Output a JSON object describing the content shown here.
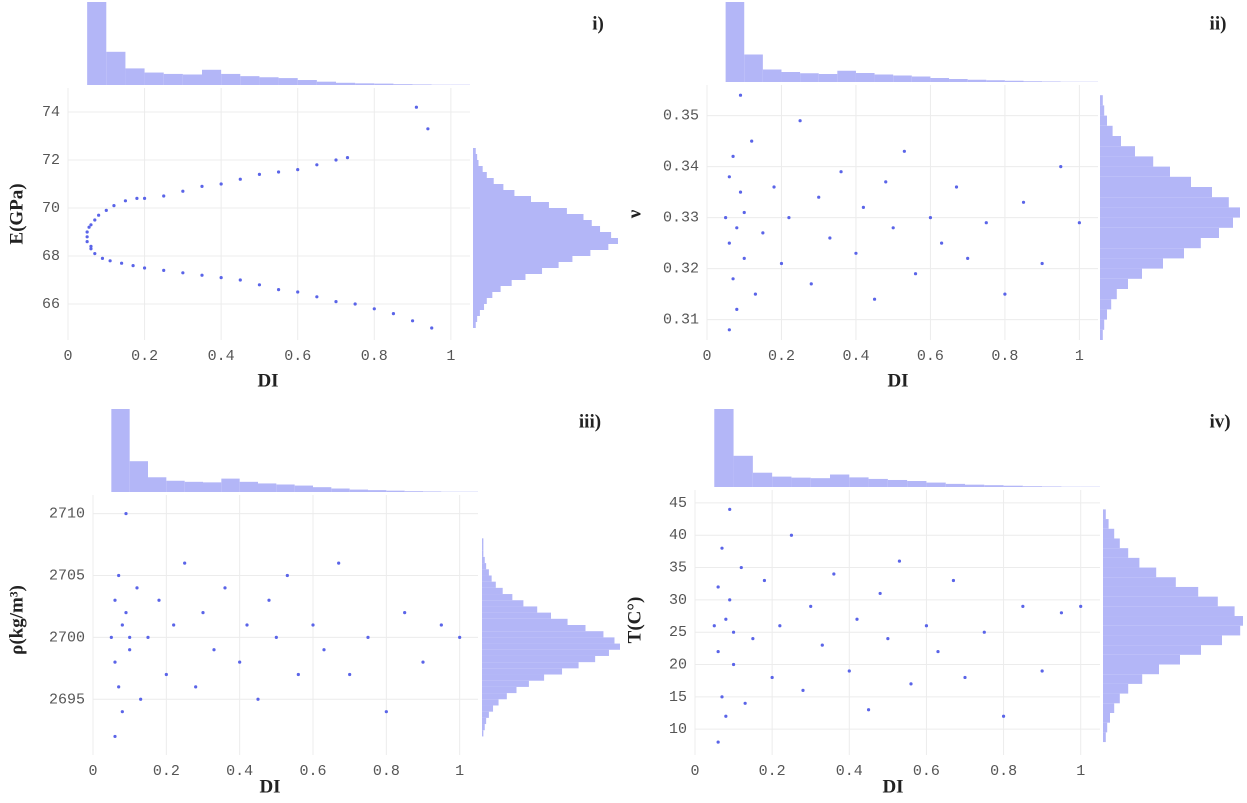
{
  "chart_data": [
    {
      "type": "scatter",
      "title": "i)",
      "xlabel": "DI",
      "ylabel": "E(GPa)",
      "color": "#5a64e8",
      "hist_color": "#b3b6f7",
      "xlim": [
        0,
        1.05
      ],
      "xticks": [
        0,
        0.2,
        0.4,
        0.6,
        0.8,
        1
      ],
      "ylim": [
        64.5,
        75
      ],
      "yticks": [
        66,
        68,
        70,
        72,
        74
      ],
      "grid": true,
      "x": [
        0.05,
        0.06,
        0.07,
        0.08,
        0.1,
        0.12,
        0.15,
        0.18,
        0.2,
        0.25,
        0.3,
        0.35,
        0.4,
        0.45,
        0.5,
        0.55,
        0.6,
        0.65,
        0.7,
        0.73,
        0.05,
        0.06,
        0.07,
        0.09,
        0.11,
        0.14,
        0.17,
        0.2,
        0.25,
        0.3,
        0.35,
        0.4,
        0.45,
        0.5,
        0.55,
        0.6,
        0.65,
        0.7,
        0.75,
        0.8,
        0.85,
        0.9,
        0.95,
        0.91,
        0.94,
        0.05,
        0.055,
        0.06
      ],
      "y": [
        69.0,
        69.3,
        69.5,
        69.7,
        69.9,
        70.1,
        70.3,
        70.4,
        70.4,
        70.5,
        70.7,
        70.9,
        71.0,
        71.2,
        71.4,
        71.5,
        71.6,
        71.8,
        72.0,
        72.1,
        68.6,
        68.3,
        68.1,
        67.9,
        67.8,
        67.7,
        67.6,
        67.5,
        67.4,
        67.3,
        67.2,
        67.1,
        67.0,
        66.8,
        66.6,
        66.5,
        66.3,
        66.1,
        66.0,
        65.8,
        65.6,
        65.3,
        65.0,
        74.2,
        73.3,
        68.8,
        69.2,
        68.4
      ],
      "x_hist": {
        "bins": [
          0.05,
          0.1,
          0.15,
          0.2,
          0.25,
          0.3,
          0.35,
          0.4,
          0.45,
          0.5,
          0.55,
          0.6,
          0.65,
          0.7,
          0.75,
          0.8,
          0.85,
          0.9,
          0.95,
          1.0,
          1.05
        ],
        "counts": [
          300,
          120,
          60,
          45,
          40,
          38,
          55,
          40,
          32,
          28,
          25,
          18,
          12,
          8,
          6,
          5,
          3,
          2,
          1,
          1
        ]
      },
      "y_hist": {
        "bins": [
          65,
          65.25,
          65.5,
          65.75,
          66,
          66.25,
          66.5,
          66.75,
          67,
          67.25,
          67.5,
          67.75,
          68,
          68.25,
          68.5,
          68.75,
          69,
          69.25,
          69.5,
          69.75,
          70,
          70.25,
          70.5,
          70.75,
          71,
          71.25,
          71.5,
          71.75,
          72,
          72.25,
          72.5
        ],
        "counts": [
          2,
          3,
          5,
          8,
          10,
          14,
          20,
          28,
          38,
          50,
          62,
          72,
          85,
          98,
          105,
          100,
          92,
          86,
          80,
          68,
          55,
          42,
          30,
          22,
          15,
          10,
          7,
          4,
          3,
          2
        ]
      }
    },
    {
      "type": "scatter",
      "title": "ii)",
      "xlabel": "DI",
      "ylabel": "ν",
      "color": "#5a64e8",
      "hist_color": "#b3b6f7",
      "xlim": [
        0,
        1.05
      ],
      "xticks": [
        0,
        0.2,
        0.4,
        0.6,
        0.8,
        1
      ],
      "ylim": [
        0.306,
        0.356
      ],
      "yticks": [
        0.31,
        0.32,
        0.33,
        0.34,
        0.35
      ],
      "grid": true,
      "x": [
        0.05,
        0.06,
        0.06,
        0.07,
        0.07,
        0.08,
        0.08,
        0.09,
        0.1,
        0.1,
        0.12,
        0.13,
        0.15,
        0.18,
        0.2,
        0.22,
        0.25,
        0.28,
        0.3,
        0.33,
        0.36,
        0.4,
        0.42,
        0.45,
        0.48,
        0.5,
        0.53,
        0.56,
        0.6,
        0.63,
        0.67,
        0.7,
        0.75,
        0.8,
        0.85,
        0.9,
        0.95,
        1.0,
        0.09,
        0.06
      ],
      "y": [
        0.33,
        0.325,
        0.338,
        0.318,
        0.342,
        0.328,
        0.312,
        0.335,
        0.322,
        0.331,
        0.345,
        0.315,
        0.327,
        0.336,
        0.321,
        0.33,
        0.349,
        0.317,
        0.334,
        0.326,
        0.339,
        0.323,
        0.332,
        0.314,
        0.337,
        0.328,
        0.343,
        0.319,
        0.33,
        0.325,
        0.336,
        0.322,
        0.329,
        0.315,
        0.333,
        0.321,
        0.34,
        0.329,
        0.354,
        0.308
      ],
      "x_hist": {
        "bins": [
          0.05,
          0.1,
          0.15,
          0.2,
          0.25,
          0.3,
          0.35,
          0.4,
          0.45,
          0.5,
          0.55,
          0.6,
          0.65,
          0.7,
          0.75,
          0.8,
          0.85,
          0.9,
          0.95,
          1.0,
          1.05
        ],
        "counts": [
          320,
          110,
          50,
          40,
          35,
          32,
          45,
          36,
          30,
          26,
          22,
          16,
          12,
          9,
          7,
          5,
          3,
          2,
          1,
          1
        ]
      },
      "y_hist": {
        "bins": [
          0.306,
          0.308,
          0.31,
          0.312,
          0.314,
          0.316,
          0.318,
          0.32,
          0.322,
          0.324,
          0.326,
          0.328,
          0.33,
          0.332,
          0.334,
          0.336,
          0.338,
          0.34,
          0.342,
          0.344,
          0.346,
          0.348,
          0.35,
          0.352,
          0.354
        ],
        "counts": [
          2,
          3,
          5,
          8,
          12,
          20,
          30,
          45,
          60,
          72,
          85,
          95,
          100,
          92,
          80,
          65,
          50,
          38,
          25,
          15,
          9,
          5,
          3,
          2
        ]
      }
    },
    {
      "type": "scatter",
      "title": "iii)",
      "xlabel": "DI",
      "ylabel": "ρ(kg/m³)",
      "color": "#5a64e8",
      "hist_color": "#b3b6f7",
      "xlim": [
        0,
        1.05
      ],
      "xticks": [
        0,
        0.2,
        0.4,
        0.6,
        0.8,
        1
      ],
      "ylim": [
        2690.5,
        2711.5
      ],
      "yticks": [
        2695,
        2700,
        2705,
        2710
      ],
      "grid": true,
      "x": [
        0.05,
        0.06,
        0.06,
        0.07,
        0.07,
        0.08,
        0.08,
        0.09,
        0.1,
        0.1,
        0.12,
        0.13,
        0.15,
        0.18,
        0.2,
        0.22,
        0.25,
        0.28,
        0.3,
        0.33,
        0.36,
        0.4,
        0.42,
        0.45,
        0.48,
        0.5,
        0.53,
        0.56,
        0.6,
        0.63,
        0.67,
        0.7,
        0.75,
        0.8,
        0.85,
        0.9,
        0.95,
        1.0,
        0.09,
        0.06
      ],
      "y": [
        2700,
        2698,
        2703,
        2696,
        2705,
        2701,
        2694,
        2702,
        2699,
        2700,
        2704,
        2695,
        2700,
        2703,
        2697,
        2701,
        2706,
        2696,
        2702,
        2699,
        2704,
        2698,
        2701,
        2695,
        2703,
        2700,
        2705,
        2697,
        2701,
        2699,
        2706,
        2697,
        2700,
        2694,
        2702,
        2698,
        2701,
        2700,
        2710,
        2692
      ],
      "x_hist": {
        "bins": [
          0.05,
          0.1,
          0.15,
          0.2,
          0.25,
          0.3,
          0.35,
          0.4,
          0.45,
          0.5,
          0.55,
          0.6,
          0.65,
          0.7,
          0.75,
          0.8,
          0.85,
          0.9,
          0.95,
          1.0,
          1.05
        ],
        "counts": [
          310,
          115,
          55,
          42,
          38,
          36,
          50,
          38,
          32,
          28,
          24,
          18,
          13,
          9,
          7,
          5,
          3,
          2,
          1,
          1
        ]
      },
      "y_hist": {
        "bins": [
          2692,
          2692.5,
          2693,
          2693.5,
          2694,
          2694.5,
          2695,
          2695.5,
          2696,
          2696.5,
          2697,
          2697.5,
          2698,
          2698.5,
          2699,
          2699.5,
          2700,
          2700.5,
          2701,
          2701.5,
          2702,
          2702.5,
          2703,
          2703.5,
          2704,
          2704.5,
          2705,
          2705.5,
          2706,
          2706.5,
          2707,
          2707.5,
          2708
        ],
        "counts": [
          1,
          2,
          3,
          5,
          8,
          12,
          18,
          25,
          34,
          45,
          58,
          70,
          82,
          92,
          100,
          96,
          88,
          75,
          62,
          50,
          40,
          30,
          22,
          15,
          10,
          7,
          5,
          3,
          2,
          1,
          1,
          1
        ]
      }
    },
    {
      "type": "scatter",
      "title": "iv)",
      "xlabel": "DI",
      "ylabel": "T(C°)",
      "color": "#5a64e8",
      "hist_color": "#b3b6f7",
      "xlim": [
        0,
        1.05
      ],
      "xticks": [
        0,
        0.2,
        0.4,
        0.6,
        0.8,
        1
      ],
      "ylim": [
        6,
        47
      ],
      "yticks": [
        10,
        15,
        20,
        25,
        30,
        35,
        40,
        45
      ],
      "grid": true,
      "x": [
        0.05,
        0.06,
        0.06,
        0.07,
        0.07,
        0.08,
        0.08,
        0.09,
        0.1,
        0.1,
        0.12,
        0.13,
        0.15,
        0.18,
        0.2,
        0.22,
        0.25,
        0.28,
        0.3,
        0.33,
        0.36,
        0.4,
        0.42,
        0.45,
        0.48,
        0.5,
        0.53,
        0.56,
        0.6,
        0.63,
        0.67,
        0.7,
        0.75,
        0.8,
        0.85,
        0.9,
        0.95,
        1.0,
        0.09,
        0.06
      ],
      "y": [
        26,
        22,
        32,
        15,
        38,
        27,
        12,
        30,
        20,
        25,
        35,
        14,
        24,
        33,
        18,
        26,
        40,
        16,
        29,
        23,
        34,
        19,
        27,
        13,
        31,
        24,
        36,
        17,
        26,
        22,
        33,
        18,
        25,
        12,
        29,
        19,
        28,
        29,
        44,
        8
      ],
      "x_hist": {
        "bins": [
          0.05,
          0.1,
          0.15,
          0.2,
          0.25,
          0.3,
          0.35,
          0.4,
          0.45,
          0.5,
          0.55,
          0.6,
          0.65,
          0.7,
          0.75,
          0.8,
          0.85,
          0.9,
          0.95,
          1.0,
          1.05
        ],
        "counts": [
          300,
          120,
          55,
          40,
          36,
          34,
          48,
          37,
          31,
          27,
          23,
          17,
          12,
          9,
          7,
          5,
          3,
          2,
          1,
          1
        ]
      },
      "y_hist": {
        "bins": [
          8,
          9.5,
          11,
          12.5,
          14,
          15.5,
          17,
          18.5,
          20,
          21.5,
          23,
          24.5,
          26,
          27.5,
          29,
          30.5,
          32,
          33.5,
          35,
          36.5,
          38,
          39.5,
          41,
          42.5,
          44
        ],
        "counts": [
          2,
          3,
          5,
          8,
          12,
          18,
          28,
          40,
          55,
          70,
          85,
          98,
          100,
          94,
          82,
          68,
          52,
          38,
          26,
          18,
          12,
          8,
          4,
          2
        ]
      }
    }
  ]
}
